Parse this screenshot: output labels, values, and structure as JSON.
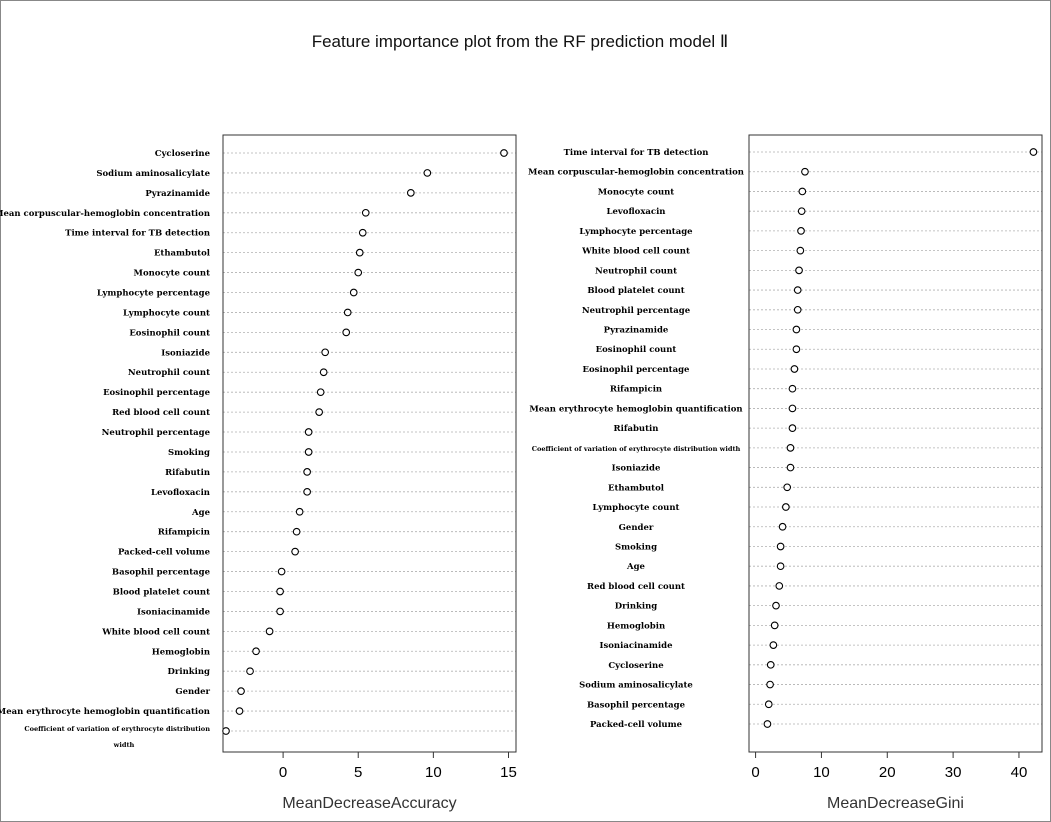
{
  "chart_data": [
    {
      "type": "scatter",
      "title": "Feature importance plot from the RF prediction model Ⅱ",
      "xlabel": "MeanDecreaseAccuracy",
      "xlim": [
        -4,
        15.5
      ],
      "xticks": [
        0,
        5,
        10,
        15
      ],
      "grid": true,
      "categories": [
        "Cycloserine",
        "Sodium aminosalicylate",
        "Pyrazinamide",
        "Mean corpuscular-hemoglobin concentration",
        "Time interval for TB detection",
        "Ethambutol",
        "Monocyte count",
        "Lymphocyte percentage",
        "Lymphocyte count",
        "Eosinophil count",
        "Isoniazide",
        "Neutrophil count",
        "Eosinophil percentage",
        "Red blood cell count",
        "Neutrophil percentage",
        "Smoking",
        "Rifabutin",
        "Levofloxacin",
        "Age",
        "Rifampicin",
        "Packed-cell volume",
        "Basophil percentage",
        "Blood platelet count",
        "Isoniacinamide",
        "White blood cell count",
        "Hemoglobin",
        "Drinking",
        "Gender",
        "Mean erythrocyte hemoglobin quantification",
        "Coefficient of variation of erythrocyte distribution width"
      ],
      "values": [
        14.7,
        9.6,
        8.5,
        5.5,
        5.3,
        5.1,
        5.0,
        4.7,
        4.3,
        4.2,
        2.8,
        2.7,
        2.5,
        2.4,
        1.7,
        1.7,
        1.6,
        1.6,
        1.1,
        0.9,
        0.8,
        -0.1,
        -0.2,
        -0.2,
        -0.9,
        -1.8,
        -2.2,
        -2.8,
        -2.9,
        -3.8
      ]
    },
    {
      "type": "scatter",
      "xlabel": "MeanDecreaseGini",
      "xlim": [
        -1,
        43.5
      ],
      "xticks": [
        0,
        10,
        20,
        30,
        40
      ],
      "grid": true,
      "categories": [
        "Time interval for TB detection",
        "Mean corpuscular-hemoglobin concentration",
        "Monocyte count",
        "Levofloxacin",
        "Lymphocyte percentage",
        "White blood cell count",
        "Neutrophil count",
        "Blood platelet count",
        "Neutrophil percentage",
        "Pyrazinamide",
        "Eosinophil count",
        "Eosinophil percentage",
        "Rifampicin",
        "Mean erythrocyte hemoglobin quantification",
        "Rifabutin",
        "Coefficient of variation of erythrocyte distribution width",
        "Isoniazide",
        "Ethambutol",
        "Lymphocyte count",
        "Gender",
        "Smoking",
        "Age",
        "Red blood cell count",
        "Drinking",
        "Hemoglobin",
        "Isoniacinamide",
        "Cycloserine",
        "Sodium aminosalicylate",
        "Basophil percentage",
        "Packed-cell volume"
      ],
      "values": [
        42.2,
        7.5,
        7.1,
        7.0,
        6.9,
        6.8,
        6.6,
        6.4,
        6.4,
        6.2,
        6.2,
        5.9,
        5.6,
        5.6,
        5.6,
        5.3,
        5.3,
        4.8,
        4.6,
        4.1,
        3.8,
        3.8,
        3.6,
        3.1,
        2.9,
        2.7,
        2.3,
        2.2,
        2.0,
        1.8
      ]
    }
  ]
}
